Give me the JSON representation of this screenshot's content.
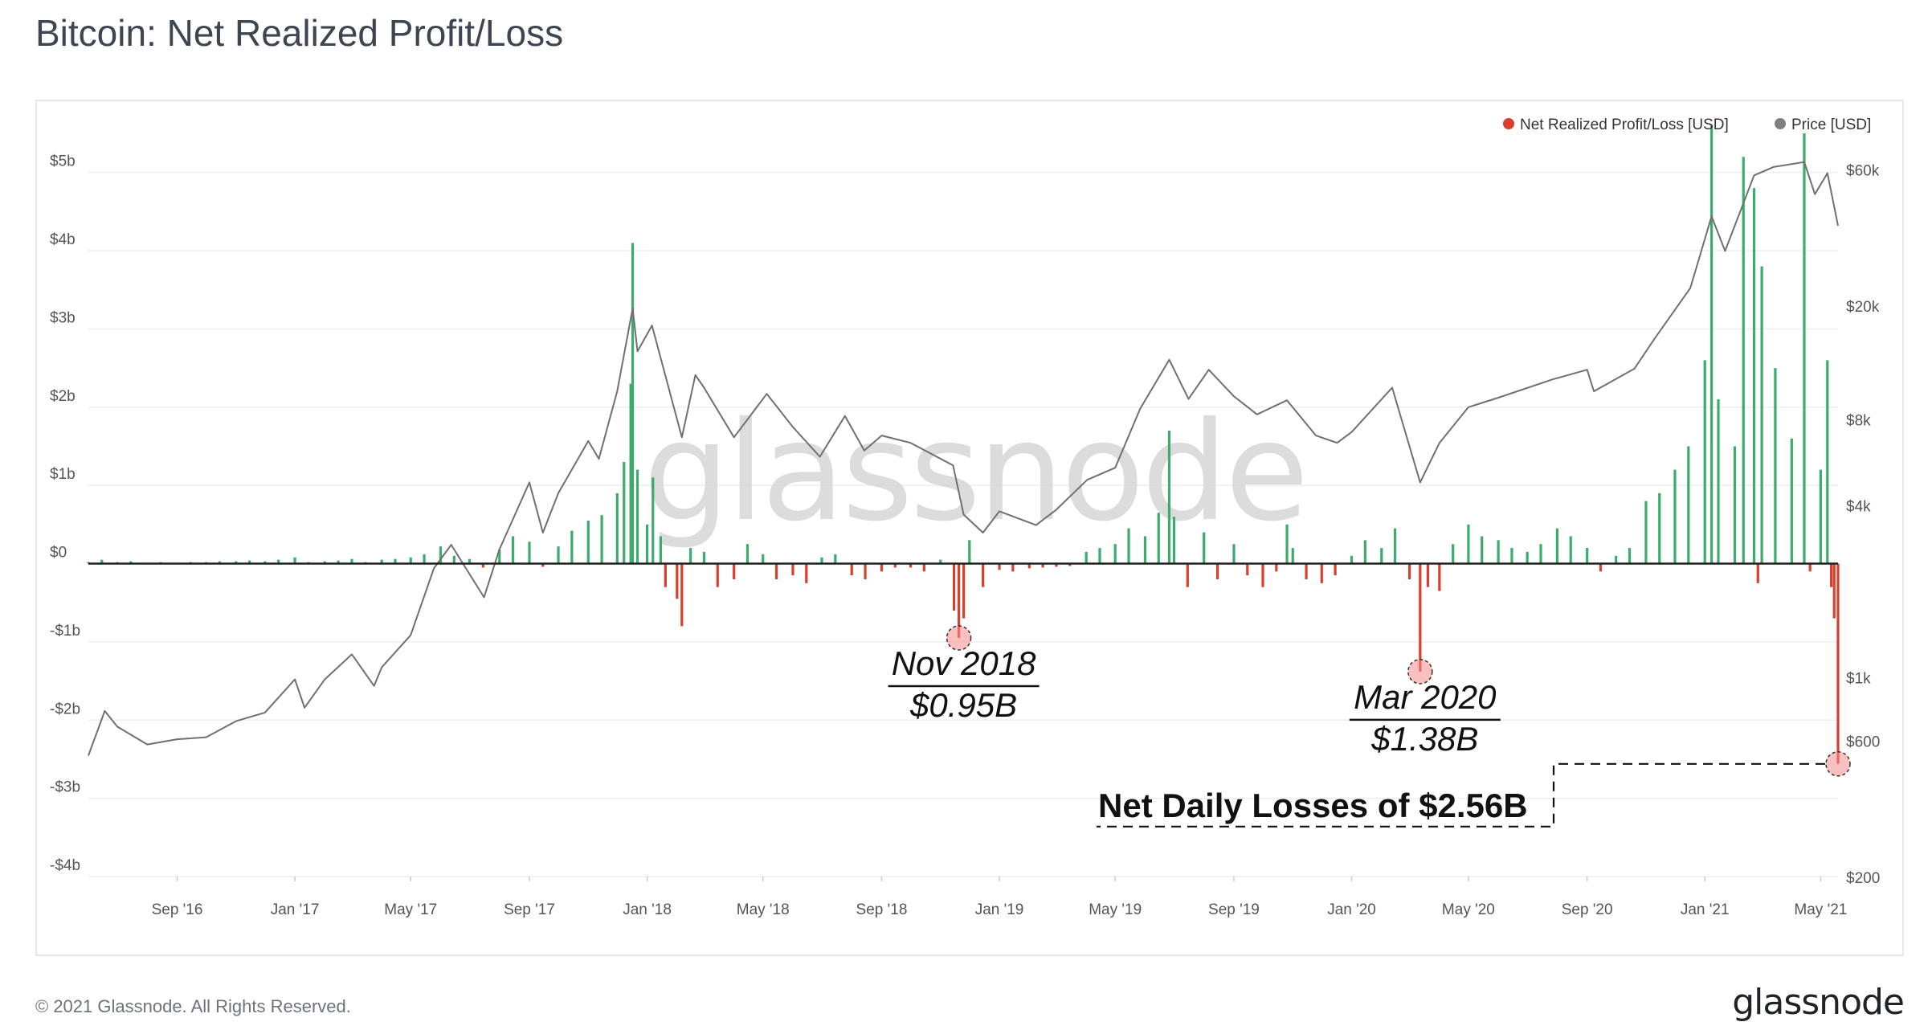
{
  "title": "Bitcoin: Net Realized Profit/Loss",
  "footer": {
    "copyright": "© 2021 Glassnode. All Rights Reserved.",
    "logo": "glassnode"
  },
  "watermark": "glassnode",
  "colors": {
    "profit": "#3dab6c",
    "loss": "#d9402b",
    "price": "#707070",
    "axis": "#1f1f1f",
    "grid": "#eeeeee"
  },
  "chart_data": {
    "type": "bar",
    "legend": {
      "position": "top-right",
      "items": [
        {
          "name": "Net Realized Profit/Loss [USD]",
          "color": "#d9402b"
        },
        {
          "name": "Price [USD]",
          "color": "#808080"
        }
      ]
    },
    "x_range": [
      "2016-06-01",
      "2021-05-19"
    ],
    "x_ticks": [
      {
        "label": "Sep '16",
        "date": "2016-09-01"
      },
      {
        "label": "Jan '17",
        "date": "2017-01-01"
      },
      {
        "label": "May '17",
        "date": "2017-05-01"
      },
      {
        "label": "Sep '17",
        "date": "2017-09-01"
      },
      {
        "label": "Jan '18",
        "date": "2018-01-01"
      },
      {
        "label": "May '18",
        "date": "2018-05-01"
      },
      {
        "label": "Sep '18",
        "date": "2018-09-01"
      },
      {
        "label": "Jan '19",
        "date": "2019-01-01"
      },
      {
        "label": "May '19",
        "date": "2019-05-01"
      },
      {
        "label": "Sep '19",
        "date": "2019-09-01"
      },
      {
        "label": "Jan '20",
        "date": "2020-01-01"
      },
      {
        "label": "May '20",
        "date": "2020-05-01"
      },
      {
        "label": "Sep '20",
        "date": "2020-09-01"
      },
      {
        "label": "Jan '21",
        "date": "2021-01-01"
      },
      {
        "label": "May '21",
        "date": "2021-05-01"
      }
    ],
    "y_left": {
      "unit": "USD",
      "range": [
        -4000000000,
        5500000000
      ],
      "ticks": [
        {
          "label": "$5b",
          "value": 5000000000
        },
        {
          "label": "$4b",
          "value": 4000000000
        },
        {
          "label": "$3b",
          "value": 3000000000
        },
        {
          "label": "$2b",
          "value": 2000000000
        },
        {
          "label": "$1b",
          "value": 1000000000
        },
        {
          "label": "$0",
          "value": 0
        },
        {
          "label": "-$1b",
          "value": -1000000000
        },
        {
          "label": "-$2b",
          "value": -2000000000
        },
        {
          "label": "-$3b",
          "value": -3000000000
        },
        {
          "label": "-$4b",
          "value": -4000000000
        }
      ]
    },
    "y_right": {
      "scale": "log",
      "unit": "USD",
      "range": [
        200,
        80000
      ],
      "ticks": [
        {
          "label": "$60k",
          "value": 60000
        },
        {
          "label": "$20k",
          "value": 20000
        },
        {
          "label": "$8k",
          "value": 8000
        },
        {
          "label": "$4k",
          "value": 4000
        },
        {
          "label": "$1k",
          "value": 1000
        },
        {
          "label": "$600",
          "value": 600
        },
        {
          "label": "$200",
          "value": 200
        }
      ]
    },
    "series": [
      {
        "name": "Net Realized Profit/Loss [USD]",
        "kind": "bar",
        "unit": "USD billions",
        "points": [
          [
            "2016-06-01",
            0.02
          ],
          [
            "2016-06-15",
            0.05
          ],
          [
            "2016-07-01",
            0.02
          ],
          [
            "2016-07-15",
            0.03
          ],
          [
            "2016-08-01",
            0.01
          ],
          [
            "2016-08-15",
            0.02
          ],
          [
            "2016-09-01",
            0.01
          ],
          [
            "2016-09-15",
            0.02
          ],
          [
            "2016-10-01",
            0.02
          ],
          [
            "2016-10-15",
            0.03
          ],
          [
            "2016-11-01",
            0.03
          ],
          [
            "2016-11-15",
            0.04
          ],
          [
            "2016-12-01",
            0.03
          ],
          [
            "2016-12-15",
            0.05
          ],
          [
            "2017-01-01",
            0.08
          ],
          [
            "2017-01-15",
            0.02
          ],
          [
            "2017-02-01",
            0.03
          ],
          [
            "2017-02-15",
            0.04
          ],
          [
            "2017-03-01",
            0.06
          ],
          [
            "2017-03-15",
            0.02
          ],
          [
            "2017-04-01",
            0.05
          ],
          [
            "2017-04-15",
            0.06
          ],
          [
            "2017-05-01",
            0.08
          ],
          [
            "2017-05-15",
            0.12
          ],
          [
            "2017-06-01",
            0.22
          ],
          [
            "2017-06-15",
            0.1
          ],
          [
            "2017-07-01",
            0.06
          ],
          [
            "2017-07-15",
            -0.05
          ],
          [
            "2017-08-01",
            0.18
          ],
          [
            "2017-08-15",
            0.35
          ],
          [
            "2017-09-01",
            0.28
          ],
          [
            "2017-09-15",
            -0.04
          ],
          [
            "2017-10-01",
            0.22
          ],
          [
            "2017-10-15",
            0.42
          ],
          [
            "2017-11-01",
            0.55
          ],
          [
            "2017-11-15",
            0.62
          ],
          [
            "2017-12-01",
            0.9
          ],
          [
            "2017-12-08",
            1.3
          ],
          [
            "2017-12-15",
            2.3
          ],
          [
            "2017-12-17",
            4.1
          ],
          [
            "2017-12-22",
            1.2
          ],
          [
            "2018-01-01",
            0.5
          ],
          [
            "2018-01-07",
            1.1
          ],
          [
            "2018-01-15",
            0.35
          ],
          [
            "2018-01-20",
            -0.3
          ],
          [
            "2018-02-01",
            -0.45
          ],
          [
            "2018-02-06",
            -0.8
          ],
          [
            "2018-02-15",
            0.2
          ],
          [
            "2018-03-01",
            0.15
          ],
          [
            "2018-03-15",
            -0.3
          ],
          [
            "2018-04-01",
            -0.2
          ],
          [
            "2018-04-15",
            0.25
          ],
          [
            "2018-05-01",
            0.12
          ],
          [
            "2018-05-15",
            -0.2
          ],
          [
            "2018-06-01",
            -0.15
          ],
          [
            "2018-06-15",
            -0.25
          ],
          [
            "2018-07-01",
            0.08
          ],
          [
            "2018-07-15",
            0.12
          ],
          [
            "2018-08-01",
            -0.15
          ],
          [
            "2018-08-15",
            -0.2
          ],
          [
            "2018-09-01",
            -0.1
          ],
          [
            "2018-09-15",
            -0.05
          ],
          [
            "2018-10-01",
            -0.05
          ],
          [
            "2018-10-15",
            -0.1
          ],
          [
            "2018-11-01",
            0.05
          ],
          [
            "2018-11-15",
            -0.6
          ],
          [
            "2018-11-20",
            -0.95
          ],
          [
            "2018-11-25",
            -0.7
          ],
          [
            "2018-12-01",
            0.3
          ],
          [
            "2018-12-15",
            -0.3
          ],
          [
            "2019-01-01",
            -0.08
          ],
          [
            "2019-01-15",
            -0.1
          ],
          [
            "2019-02-01",
            -0.06
          ],
          [
            "2019-02-15",
            -0.05
          ],
          [
            "2019-03-01",
            -0.04
          ],
          [
            "2019-03-15",
            -0.03
          ],
          [
            "2019-04-01",
            0.15
          ],
          [
            "2019-04-15",
            0.2
          ],
          [
            "2019-05-01",
            0.25
          ],
          [
            "2019-05-15",
            0.45
          ],
          [
            "2019-06-01",
            0.35
          ],
          [
            "2019-06-15",
            0.65
          ],
          [
            "2019-06-26",
            1.7
          ],
          [
            "2019-07-01",
            0.6
          ],
          [
            "2019-07-15",
            -0.3
          ],
          [
            "2019-08-01",
            0.4
          ],
          [
            "2019-08-15",
            -0.2
          ],
          [
            "2019-09-01",
            0.25
          ],
          [
            "2019-09-15",
            -0.15
          ],
          [
            "2019-10-01",
            -0.3
          ],
          [
            "2019-10-15",
            -0.1
          ],
          [
            "2019-10-26",
            0.5
          ],
          [
            "2019-11-01",
            0.2
          ],
          [
            "2019-11-15",
            -0.2
          ],
          [
            "2019-12-01",
            -0.25
          ],
          [
            "2019-12-15",
            -0.15
          ],
          [
            "2020-01-01",
            0.1
          ],
          [
            "2020-01-15",
            0.3
          ],
          [
            "2020-02-01",
            0.2
          ],
          [
            "2020-02-15",
            0.45
          ],
          [
            "2020-03-01",
            -0.2
          ],
          [
            "2020-03-12",
            -1.38
          ],
          [
            "2020-03-20",
            -0.3
          ],
          [
            "2020-04-01",
            -0.35
          ],
          [
            "2020-04-15",
            0.25
          ],
          [
            "2020-05-01",
            0.5
          ],
          [
            "2020-05-15",
            0.35
          ],
          [
            "2020-06-01",
            0.3
          ],
          [
            "2020-06-15",
            0.2
          ],
          [
            "2020-07-01",
            0.15
          ],
          [
            "2020-07-15",
            0.25
          ],
          [
            "2020-08-01",
            0.45
          ],
          [
            "2020-08-15",
            0.35
          ],
          [
            "2020-09-01",
            0.2
          ],
          [
            "2020-09-15",
            -0.1
          ],
          [
            "2020-10-01",
            0.1
          ],
          [
            "2020-10-15",
            0.2
          ],
          [
            "2020-11-01",
            0.8
          ],
          [
            "2020-11-15",
            0.9
          ],
          [
            "2020-12-01",
            1.2
          ],
          [
            "2020-12-15",
            1.5
          ],
          [
            "2021-01-01",
            2.6
          ],
          [
            "2021-01-08",
            5.6
          ],
          [
            "2021-01-15",
            2.1
          ],
          [
            "2021-02-01",
            1.5
          ],
          [
            "2021-02-10",
            5.2
          ],
          [
            "2021-02-21",
            4.8
          ],
          [
            "2021-02-25",
            -0.25
          ],
          [
            "2021-03-01",
            3.8
          ],
          [
            "2021-03-15",
            2.5
          ],
          [
            "2021-04-01",
            1.6
          ],
          [
            "2021-04-14",
            5.5
          ],
          [
            "2021-04-20",
            -0.1
          ],
          [
            "2021-05-01",
            1.2
          ],
          [
            "2021-05-08",
            2.6
          ],
          [
            "2021-05-12",
            -0.3
          ],
          [
            "2021-05-15",
            -0.7
          ],
          [
            "2021-05-19",
            -2.56
          ]
        ]
      },
      {
        "name": "Price [USD]",
        "kind": "line",
        "points": [
          [
            "2016-06-01",
            530
          ],
          [
            "2016-06-18",
            760
          ],
          [
            "2016-07-01",
            670
          ],
          [
            "2016-08-01",
            580
          ],
          [
            "2016-09-01",
            605
          ],
          [
            "2016-10-01",
            615
          ],
          [
            "2016-11-01",
            700
          ],
          [
            "2016-12-01",
            750
          ],
          [
            "2017-01-01",
            980
          ],
          [
            "2017-01-11",
            780
          ],
          [
            "2017-02-01",
            980
          ],
          [
            "2017-03-01",
            1200
          ],
          [
            "2017-03-24",
            930
          ],
          [
            "2017-04-01",
            1080
          ],
          [
            "2017-05-01",
            1400
          ],
          [
            "2017-05-25",
            2400
          ],
          [
            "2017-06-12",
            2900
          ],
          [
            "2017-07-16",
            1900
          ],
          [
            "2017-08-01",
            2800
          ],
          [
            "2017-09-01",
            4800
          ],
          [
            "2017-09-15",
            3200
          ],
          [
            "2017-10-01",
            4400
          ],
          [
            "2017-11-01",
            6700
          ],
          [
            "2017-11-12",
            5800
          ],
          [
            "2017-12-01",
            10000
          ],
          [
            "2017-12-17",
            19500
          ],
          [
            "2017-12-22",
            13800
          ],
          [
            "2018-01-06",
            17000
          ],
          [
            "2018-02-06",
            6900
          ],
          [
            "2018-02-20",
            11400
          ],
          [
            "2018-03-01",
            10300
          ],
          [
            "2018-04-01",
            6900
          ],
          [
            "2018-05-05",
            9800
          ],
          [
            "2018-06-01",
            7500
          ],
          [
            "2018-06-29",
            5900
          ],
          [
            "2018-07-25",
            8200
          ],
          [
            "2018-08-14",
            6200
          ],
          [
            "2018-09-01",
            7000
          ],
          [
            "2018-10-01",
            6600
          ],
          [
            "2018-11-14",
            5500
          ],
          [
            "2018-11-25",
            3700
          ],
          [
            "2018-12-15",
            3200
          ],
          [
            "2019-01-01",
            3800
          ],
          [
            "2019-02-08",
            3400
          ],
          [
            "2019-03-01",
            3850
          ],
          [
            "2019-04-02",
            4900
          ],
          [
            "2019-05-01",
            5400
          ],
          [
            "2019-05-27",
            8700
          ],
          [
            "2019-06-26",
            12900
          ],
          [
            "2019-07-16",
            9400
          ],
          [
            "2019-08-06",
            11900
          ],
          [
            "2019-09-01",
            9600
          ],
          [
            "2019-09-25",
            8300
          ],
          [
            "2019-10-26",
            9300
          ],
          [
            "2019-11-25",
            7000
          ],
          [
            "2019-12-17",
            6600
          ],
          [
            "2020-01-01",
            7200
          ],
          [
            "2020-02-12",
            10300
          ],
          [
            "2020-03-12",
            4800
          ],
          [
            "2020-04-01",
            6600
          ],
          [
            "2020-05-01",
            8800
          ],
          [
            "2020-06-01",
            9500
          ],
          [
            "2020-07-27",
            11000
          ],
          [
            "2020-09-01",
            11900
          ],
          [
            "2020-09-08",
            10000
          ],
          [
            "2020-10-20",
            12000
          ],
          [
            "2020-11-10",
            15300
          ],
          [
            "2020-12-17",
            23000
          ],
          [
            "2021-01-08",
            41000
          ],
          [
            "2021-01-22",
            31000
          ],
          [
            "2021-02-21",
            57000
          ],
          [
            "2021-03-13",
            61000
          ],
          [
            "2021-04-14",
            63500
          ],
          [
            "2021-04-25",
            49000
          ],
          [
            "2021-05-08",
            58000
          ],
          [
            "2021-05-19",
            38000
          ]
        ]
      }
    ],
    "annotations": [
      {
        "date": "2018-11-20",
        "value": -0.95,
        "label_line1": "Nov 2018",
        "label_line2": "$0.95B"
      },
      {
        "date": "2020-03-12",
        "value": -1.38,
        "label_line1": "Mar 2020",
        "label_line2": "$1.38B"
      },
      {
        "date": "2021-05-19",
        "value": -2.56,
        "label": "Net Daily Losses of $2.56B"
      }
    ]
  }
}
